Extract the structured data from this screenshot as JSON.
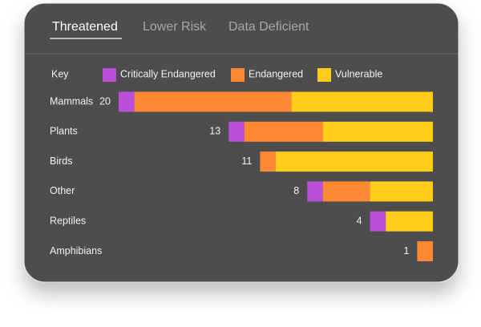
{
  "tabs": [
    "Threatened",
    "Lower Risk",
    "Data Deficient"
  ],
  "chart_data": {
    "type": "stacked-bar-horizontal",
    "key_label": "Key",
    "categories": [
      "Mammals",
      "Plants",
      "Birds",
      "Other",
      "Reptiles",
      "Amphibians"
    ],
    "totals": [
      20,
      13,
      11,
      8,
      4,
      1
    ],
    "series": [
      {
        "name": "Critically Endangered",
        "color": "#b84fd6",
        "values": [
          1,
          1,
          0,
          1,
          1,
          0
        ]
      },
      {
        "name": "Endangered",
        "color": "#ff8833",
        "values": [
          10,
          5,
          1,
          3,
          0,
          1
        ]
      },
      {
        "name": "Vulnerable",
        "color": "#ffcc1a",
        "values": [
          9,
          7,
          10,
          4,
          3,
          0
        ]
      }
    ]
  }
}
